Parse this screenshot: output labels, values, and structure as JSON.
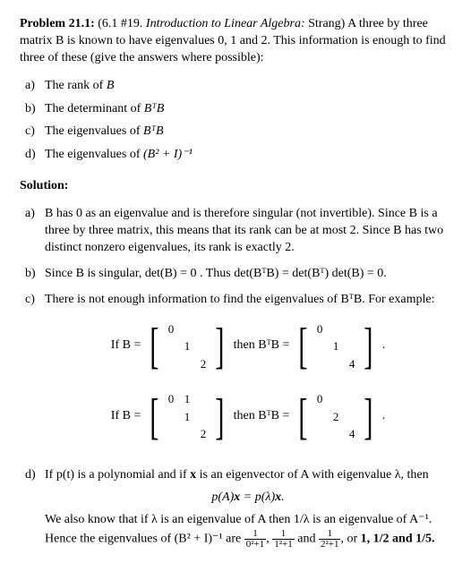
{
  "problem": {
    "label": "Problem 21.1:",
    "ref": "(6.1 #19.",
    "book": "Introduction to Linear Algebra:",
    "author": "Strang)",
    "tail": "A three by three matrix B is known to have eigenvalues 0, 1 and 2. This information is enough to find three of these (give the answers where possible):"
  },
  "parts": {
    "a": {
      "lab": "a)",
      "pre": "The rank of ",
      "mat": "B"
    },
    "b": {
      "lab": "b)",
      "pre": "The determinant of ",
      "mat": "BᵀB"
    },
    "c": {
      "lab": "c)",
      "pre": "The eigenvalues of ",
      "mat": "BᵀB"
    },
    "d": {
      "lab": "d)",
      "pre": "The eigenvalues of ",
      "mat": "(B² + I)⁻¹"
    }
  },
  "solution_head": "Solution:",
  "sol": {
    "a": {
      "lab": "a)",
      "t1": "B has 0 as an eigenvalue and is therefore singular (not invertible). Since B is a three by three matrix, this means that its rank can be at most 2. Since B has two distinct nonzero eigenvalues, its rank is exactly 2."
    },
    "b": {
      "lab": "b)",
      "t1": "Since B is singular, det(B) = 0 . Thus det(BᵀB) = det(Bᵀ) det(B) = 0."
    },
    "c": {
      "lab": "c)",
      "t1": "There is not enough information to find the eigenvalues of BᵀB. For example:"
    },
    "d": {
      "lab": "d)",
      "t1": "If p(t) is a polynomial and if ",
      "t1b": "x",
      "t1c": " is an eigenvector of A with eigenvalue λ, then",
      "eq": "p(A)x = p(λ)x.",
      "t2a": "We also know that if λ is an eigenvalue of A then 1/λ is an eigenvalue of A⁻¹. Hence the eigenvalues of (B² + I)⁻¹ are ",
      "t2b": " and ",
      "t2c": ", or ",
      "ans": "1, 1/2 and 1/5."
    }
  },
  "mats": {
    "if": "If B =",
    "then": "then BᵀB =",
    "dot": ".",
    "B1": [
      [
        "0",
        "",
        ""
      ],
      [
        "",
        "1",
        ""
      ],
      [
        "",
        "",
        "2"
      ]
    ],
    "R1": [
      [
        "0",
        "",
        ""
      ],
      [
        "",
        "1",
        ""
      ],
      [
        "",
        "",
        "4"
      ]
    ],
    "B2": [
      [
        "0",
        "1",
        ""
      ],
      [
        "",
        "1",
        ""
      ],
      [
        "",
        "",
        "2"
      ]
    ],
    "R2": [
      [
        "0",
        "",
        ""
      ],
      [
        "",
        "2",
        ""
      ],
      [
        "",
        "",
        "4"
      ]
    ]
  },
  "fracs": {
    "f1": {
      "num": "1",
      "den": "0²+1"
    },
    "sep1": ", ",
    "f2": {
      "num": "1",
      "den": "1²+1"
    },
    "f3": {
      "num": "1",
      "den": "2²+1"
    }
  }
}
